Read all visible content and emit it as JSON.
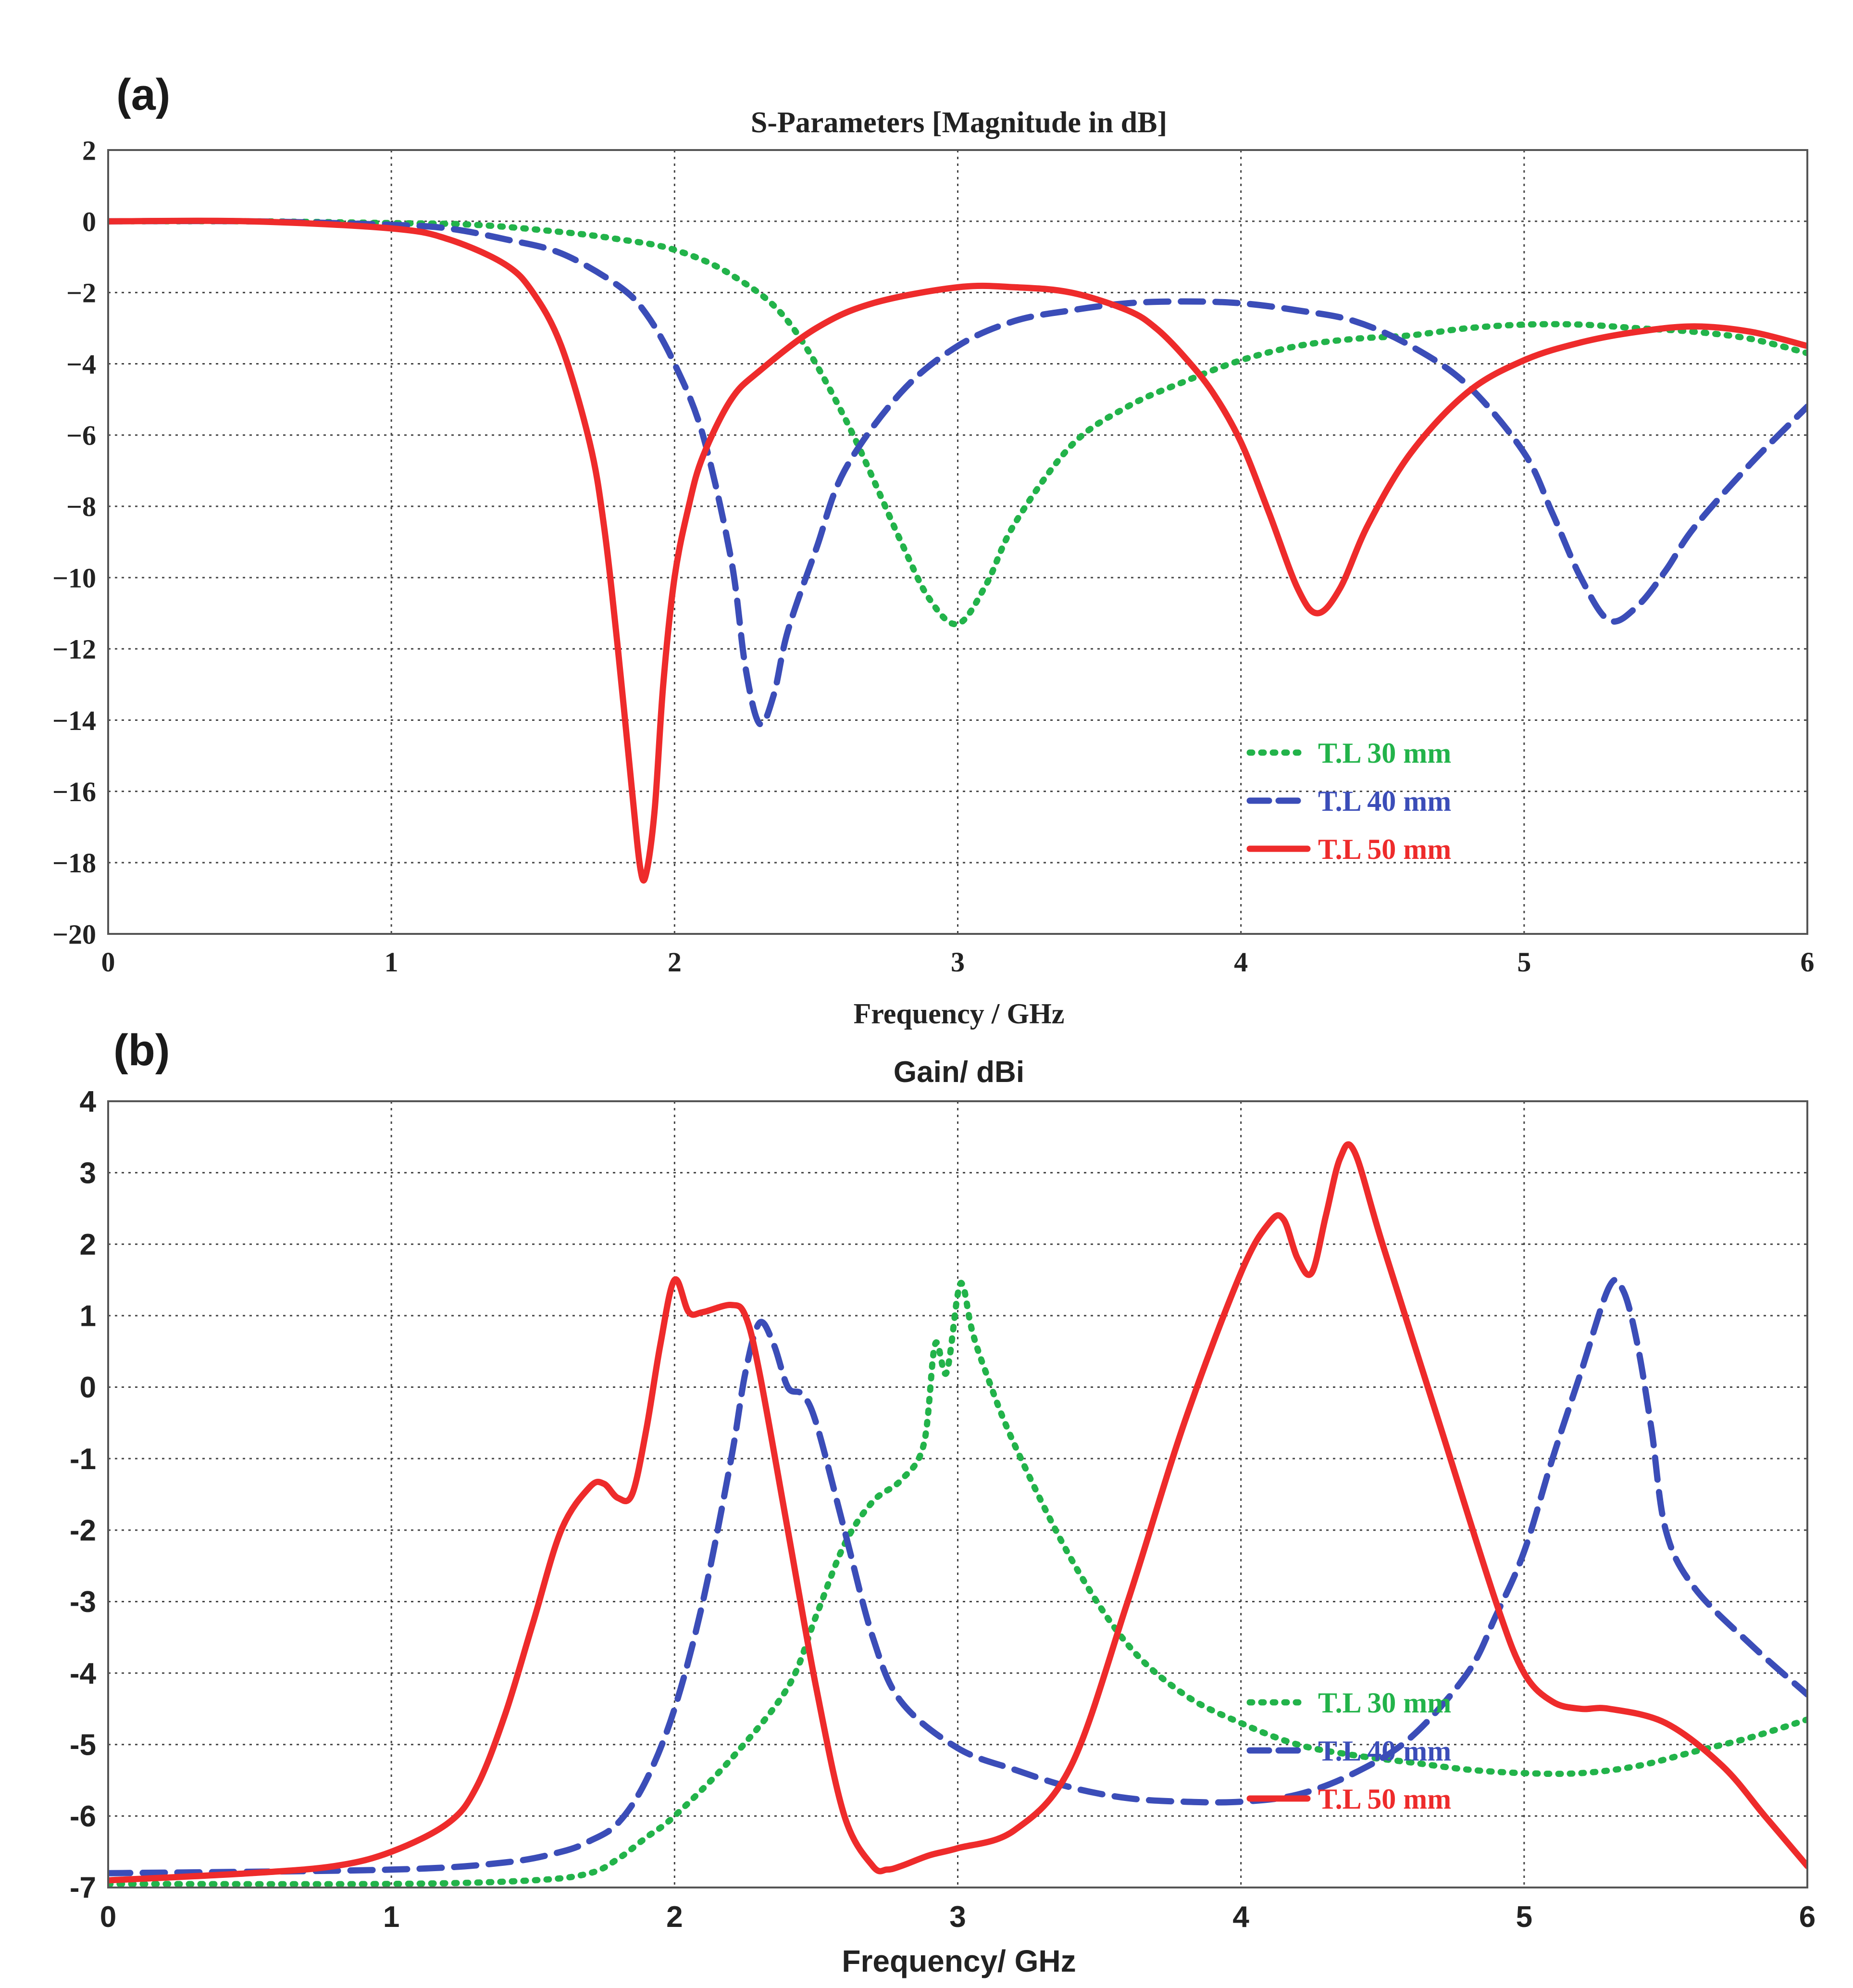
{
  "chart_data": [
    {
      "panel_label": "(a)",
      "type": "line",
      "title": "S-Parameters [Magnitude in dB]",
      "xlabel": "Frequency / GHz",
      "ylabel": "",
      "xlim": [
        0,
        6
      ],
      "ylim": [
        -20,
        2
      ],
      "xticks": [
        "0",
        "1",
        "2",
        "3",
        "4",
        "5",
        "6"
      ],
      "yticks": [
        "2",
        "0",
        "−2",
        "−4",
        "−6",
        "−8",
        "−10",
        "−12",
        "−14",
        "−16",
        "−18",
        "−20"
      ],
      "grid": true,
      "legend_position": "bottom-right",
      "series": [
        {
          "name": "T.L 30 mm",
          "color": "#22b34a",
          "style": "dotted",
          "x": [
            0,
            0.5,
            1.0,
            1.3,
            1.6,
            1.8,
            2.0,
            2.2,
            2.4,
            2.6,
            2.8,
            2.9,
            3.0,
            3.1,
            3.2,
            3.4,
            3.6,
            3.8,
            4.0,
            4.2,
            4.4,
            4.6,
            4.8,
            5.0,
            5.2,
            5.4,
            5.6,
            5.8,
            6.0
          ],
          "values": [
            0,
            0,
            -0.05,
            -0.1,
            -0.3,
            -0.5,
            -0.8,
            -1.5,
            -2.8,
            -5.5,
            -9.0,
            -10.6,
            -11.3,
            -10.2,
            -8.5,
            -6.3,
            -5.2,
            -4.5,
            -3.9,
            -3.5,
            -3.3,
            -3.2,
            -3.0,
            -2.9,
            -2.9,
            -3.0,
            -3.1,
            -3.3,
            -3.7
          ]
        },
        {
          "name": "T.L 40 mm",
          "color": "#3b4db8",
          "style": "dashed",
          "x": [
            0,
            0.5,
            1.0,
            1.2,
            1.4,
            1.6,
            1.8,
            1.9,
            2.0,
            2.1,
            2.2,
            2.25,
            2.3,
            2.35,
            2.4,
            2.5,
            2.6,
            2.8,
            3.0,
            3.2,
            3.4,
            3.6,
            3.8,
            4.0,
            4.2,
            4.4,
            4.6,
            4.8,
            5.0,
            5.1,
            5.2,
            5.3,
            5.4,
            5.5,
            5.6,
            5.8,
            6.0
          ],
          "values": [
            0,
            0,
            -0.1,
            -0.2,
            -0.5,
            -0.9,
            -1.8,
            -2.6,
            -4.0,
            -6.0,
            -9.5,
            -12.5,
            -14.1,
            -13.3,
            -11.5,
            -9.2,
            -7.0,
            -4.8,
            -3.5,
            -2.8,
            -2.5,
            -2.3,
            -2.25,
            -2.3,
            -2.5,
            -2.8,
            -3.5,
            -4.6,
            -6.5,
            -8.2,
            -10.0,
            -11.2,
            -10.8,
            -9.8,
            -8.6,
            -6.8,
            -5.2
          ]
        },
        {
          "name": "T.L 50 mm",
          "color": "#ee2b2b",
          "style": "solid",
          "x": [
            0,
            0.5,
            1.0,
            1.2,
            1.4,
            1.5,
            1.6,
            1.7,
            1.75,
            1.8,
            1.85,
            1.88,
            1.9,
            1.93,
            1.96,
            2.0,
            2.05,
            2.1,
            2.2,
            2.3,
            2.5,
            2.7,
            3.0,
            3.2,
            3.4,
            3.6,
            3.7,
            3.8,
            3.9,
            4.0,
            4.1,
            4.2,
            4.27,
            4.35,
            4.45,
            4.6,
            4.8,
            5.0,
            5.2,
            5.4,
            5.6,
            5.8,
            6.0
          ],
          "values": [
            0,
            0,
            -0.2,
            -0.5,
            -1.2,
            -2.0,
            -3.5,
            -6.2,
            -8.5,
            -12.0,
            -16.0,
            -18.2,
            -18.3,
            -16.5,
            -13.0,
            -10.0,
            -8.0,
            -6.6,
            -5.0,
            -4.2,
            -3.0,
            -2.3,
            -1.85,
            -1.85,
            -2.0,
            -2.5,
            -3.0,
            -3.8,
            -4.8,
            -6.2,
            -8.2,
            -10.3,
            -11.0,
            -10.3,
            -8.5,
            -6.5,
            -4.8,
            -3.9,
            -3.4,
            -3.1,
            -2.95,
            -3.1,
            -3.5
          ]
        }
      ]
    },
    {
      "panel_label": "(b)",
      "type": "line",
      "title": "Gain/ dBi",
      "xlabel": "Frequency/ GHz",
      "ylabel": "",
      "xlim": [
        0,
        6
      ],
      "ylim": [
        -7,
        4
      ],
      "xticks": [
        "0",
        "1",
        "2",
        "3",
        "4",
        "5",
        "6"
      ],
      "yticks": [
        "4",
        "3",
        "2",
        "1",
        "0",
        "-1",
        "-2",
        "-3",
        "-4",
        "-5",
        "-6",
        "-7"
      ],
      "grid": true,
      "legend_position": "bottom-right",
      "series": [
        {
          "name": "T.L 30 mm",
          "color": "#22b34a",
          "style": "dotted",
          "x": [
            0,
            1.0,
            1.5,
            1.7,
            1.8,
            1.9,
            2.0,
            2.2,
            2.4,
            2.5,
            2.6,
            2.7,
            2.8,
            2.88,
            2.92,
            2.96,
            3.0,
            3.02,
            3.05,
            3.1,
            3.2,
            3.4,
            3.6,
            3.8,
            4.0,
            4.2,
            4.4,
            4.6,
            4.8,
            5.0,
            5.2,
            5.4,
            5.6,
            5.8,
            6.0
          ],
          "values": [
            -6.95,
            -6.95,
            -6.9,
            -6.8,
            -6.6,
            -6.3,
            -6.0,
            -5.2,
            -4.2,
            -3.2,
            -2.2,
            -1.6,
            -1.3,
            -0.8,
            0.6,
            0.2,
            1.3,
            1.4,
            0.8,
            0.2,
            -0.8,
            -2.4,
            -3.6,
            -4.3,
            -4.7,
            -5.0,
            -5.15,
            -5.25,
            -5.35,
            -5.4,
            -5.4,
            -5.3,
            -5.1,
            -4.9,
            -4.65
          ]
        },
        {
          "name": "T.L 40 mm",
          "color": "#3b4db8",
          "style": "dashed",
          "x": [
            0,
            1.0,
            1.4,
            1.6,
            1.7,
            1.8,
            1.9,
            2.0,
            2.1,
            2.2,
            2.25,
            2.3,
            2.35,
            2.4,
            2.45,
            2.5,
            2.6,
            2.7,
            2.8,
            3.0,
            3.2,
            3.4,
            3.6,
            3.8,
            4.0,
            4.2,
            4.4,
            4.6,
            4.8,
            4.9,
            5.0,
            5.1,
            5.2,
            5.3,
            5.35,
            5.4,
            5.45,
            5.5,
            5.6,
            5.8,
            6.0
          ],
          "values": [
            -6.8,
            -6.75,
            -6.65,
            -6.5,
            -6.35,
            -6.1,
            -5.5,
            -4.5,
            -3.0,
            -1.0,
            0.2,
            0.9,
            0.6,
            0.0,
            -0.1,
            -0.5,
            -2.0,
            -3.5,
            -4.4,
            -5.05,
            -5.35,
            -5.6,
            -5.75,
            -5.8,
            -5.8,
            -5.7,
            -5.4,
            -4.9,
            -4.0,
            -3.2,
            -2.3,
            -1.0,
            0.2,
            1.4,
            1.35,
            0.6,
            -0.6,
            -2.0,
            -2.8,
            -3.6,
            -4.3
          ]
        },
        {
          "name": "T.L 50 mm",
          "color": "#ee2b2b",
          "style": "solid",
          "x": [
            0,
            0.5,
            0.8,
            1.0,
            1.2,
            1.3,
            1.4,
            1.5,
            1.6,
            1.7,
            1.75,
            1.8,
            1.85,
            1.9,
            1.95,
            2.0,
            2.05,
            2.1,
            2.2,
            2.25,
            2.3,
            2.4,
            2.5,
            2.6,
            2.7,
            2.75,
            2.8,
            2.9,
            3.0,
            3.2,
            3.4,
            3.6,
            3.8,
            4.0,
            4.1,
            4.15,
            4.2,
            4.25,
            4.3,
            4.35,
            4.4,
            4.5,
            4.7,
            4.9,
            5.0,
            5.1,
            5.2,
            5.3,
            5.5,
            5.7,
            5.85,
            6.0
          ],
          "values": [
            -6.9,
            -6.8,
            -6.7,
            -6.5,
            -6.1,
            -5.6,
            -4.6,
            -3.3,
            -2.0,
            -1.4,
            -1.35,
            -1.55,
            -1.5,
            -0.6,
            0.6,
            1.5,
            1.05,
            1.05,
            1.15,
            1.0,
            0.2,
            -2.0,
            -4.2,
            -6.0,
            -6.7,
            -6.75,
            -6.7,
            -6.55,
            -6.45,
            -6.2,
            -5.3,
            -3.0,
            -0.5,
            1.6,
            2.3,
            2.35,
            1.8,
            1.6,
            2.4,
            3.2,
            3.3,
            2.0,
            -0.5,
            -3.0,
            -4.0,
            -4.4,
            -4.5,
            -4.5,
            -4.7,
            -5.3,
            -6.0,
            -6.7
          ]
        }
      ]
    }
  ]
}
